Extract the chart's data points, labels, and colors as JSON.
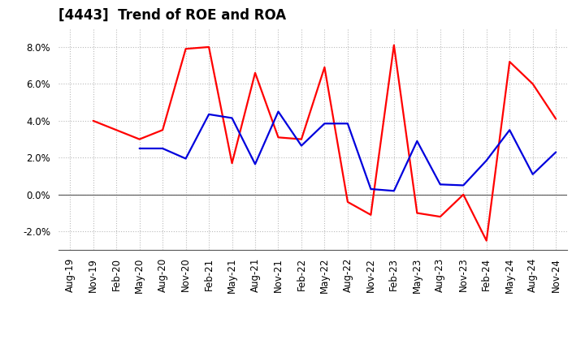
{
  "title": "[4443]  Trend of ROE and ROA",
  "x_labels": [
    "Aug-19",
    "Nov-19",
    "Feb-20",
    "May-20",
    "Aug-20",
    "Nov-20",
    "Feb-21",
    "May-21",
    "Aug-21",
    "Nov-21",
    "Feb-22",
    "May-22",
    "Aug-22",
    "Nov-22",
    "Feb-23",
    "May-23",
    "Aug-23",
    "Nov-23",
    "Feb-24",
    "May-24",
    "Aug-24",
    "Nov-24"
  ],
  "roe": [
    null,
    4.0,
    3.5,
    3.0,
    3.5,
    7.9,
    8.0,
    1.7,
    6.6,
    3.1,
    3.0,
    6.9,
    -0.4,
    -1.1,
    8.1,
    -1.0,
    -1.2,
    0.0,
    -2.5,
    7.2,
    6.0,
    4.1
  ],
  "roa": [
    null,
    null,
    null,
    2.5,
    2.5,
    1.95,
    4.35,
    4.15,
    1.65,
    4.5,
    2.65,
    3.85,
    3.85,
    0.3,
    0.2,
    2.9,
    0.55,
    0.5,
    1.85,
    3.5,
    1.1,
    2.3
  ],
  "ylim_min": -3.0,
  "ylim_max": 9.0,
  "yticks": [
    -2.0,
    0.0,
    2.0,
    4.0,
    6.0,
    8.0
  ],
  "roe_color": "#ff0000",
  "roa_color": "#0000dd",
  "bg_color": "#ffffff",
  "plot_bg": "#ffffff",
  "grid_color": "#bbbbbb",
  "title_fontsize": 12,
  "tick_fontsize": 8.5,
  "legend_fontsize": 10
}
